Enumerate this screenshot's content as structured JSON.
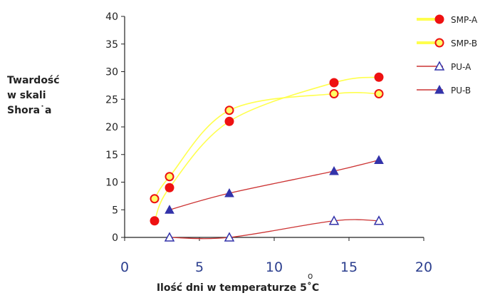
{
  "chart_data": {
    "type": "line",
    "ylabel_lines": [
      "Twardość",
      "w skali",
      "Shora˙a"
    ],
    "xlabel": "Ilość dni w temperaturze 5˚C",
    "degree_mark": "o",
    "xlim": [
      0,
      20
    ],
    "ylim": [
      0,
      40
    ],
    "x_ticks": [
      "0",
      "5",
      "10",
      "15",
      "20"
    ],
    "y_ticks": [
      "0",
      "5",
      "10",
      "15",
      "20",
      "25",
      "30",
      "35",
      "40"
    ],
    "grid": false,
    "legend_position": "top-right",
    "series": [
      {
        "name": "SMP-A",
        "line_color": "#ffff4d",
        "marker": "filled-circle",
        "marker_color": "#ee1111",
        "points": [
          [
            2,
            3
          ],
          [
            3,
            9
          ],
          [
            7,
            21
          ],
          [
            14,
            28
          ],
          [
            17,
            29
          ]
        ]
      },
      {
        "name": "SMP-B",
        "line_color": "#ffff4d",
        "marker": "open-circle",
        "marker_color": "#ee1111",
        "points": [
          [
            2,
            7
          ],
          [
            3,
            11
          ],
          [
            7,
            23
          ],
          [
            14,
            26
          ],
          [
            17,
            26
          ]
        ]
      },
      {
        "name": "PU-A",
        "line_color": "#cc3333",
        "marker": "open-triangle",
        "marker_color": "#3333aa",
        "points": [
          [
            3,
            0
          ],
          [
            7,
            0
          ],
          [
            14,
            3
          ],
          [
            17,
            3
          ]
        ]
      },
      {
        "name": "PU-B",
        "line_color": "#cc3333",
        "marker": "filled-triangle",
        "marker_color": "#3333aa",
        "points": [
          [
            3,
            5
          ],
          [
            7,
            8
          ],
          [
            14,
            12
          ],
          [
            17,
            14
          ]
        ]
      }
    ]
  }
}
